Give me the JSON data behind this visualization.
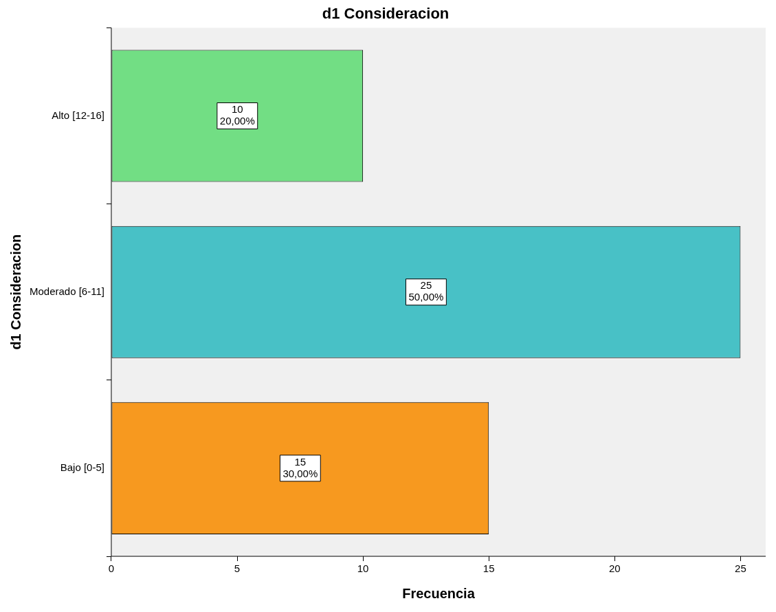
{
  "chart_data": {
    "type": "bar",
    "orientation": "horizontal",
    "title": "d1 Consideracion",
    "xlabel": "Frecuencia",
    "ylabel": "d1 Consideracion",
    "categories": [
      "Alto [12-16]",
      "Moderado [6-11]",
      "Bajo [0-5]"
    ],
    "values": [
      10,
      25,
      15
    ],
    "colors": [
      "#72de84",
      "#48c1c6",
      "#f7991f"
    ],
    "value_labels": [
      "10\n20,00%",
      "25\n50,00%",
      "15\n30,00%"
    ],
    "xlim": [
      0,
      26
    ],
    "xticks": [
      0,
      5,
      10,
      15,
      20,
      25
    ],
    "grid": false,
    "legend": false
  }
}
